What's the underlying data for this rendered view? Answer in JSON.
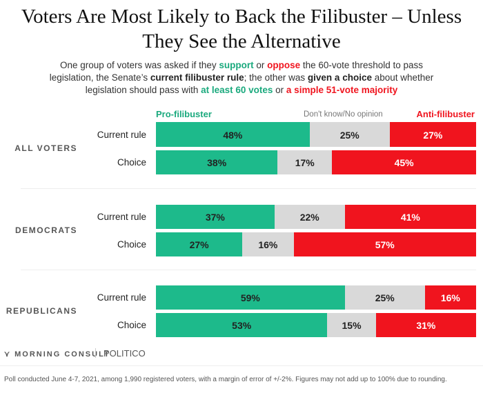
{
  "chart_data": {
    "type": "bar",
    "orientation": "horizontal-stacked",
    "title": "Voters Are Most Likely to Back the Filibuster – Unless They See the Alternative",
    "subtitle_parts": [
      {
        "t": "One group of voters was asked if they ",
        "c": ""
      },
      {
        "t": "support",
        "c": "g"
      },
      {
        "t": " or ",
        "c": ""
      },
      {
        "t": "oppose",
        "c": "r"
      },
      {
        "t": " the 60-vote threshold to pass legislation, the Senate’s ",
        "c": ""
      },
      {
        "t": "current filibuster rule",
        "c": "k"
      },
      {
        "t": "; the other was ",
        "c": ""
      },
      {
        "t": "given a choice",
        "c": "k"
      },
      {
        "t": " about whether legislation should pass with ",
        "c": ""
      },
      {
        "t": "at least 60 votes",
        "c": "g"
      },
      {
        "t": " or ",
        "c": ""
      },
      {
        "t": "a simple 51-vote majority",
        "c": "r"
      }
    ],
    "legend": [
      "Pro-filibuster",
      "Don't know/No opinion",
      "Anti-filibuster"
    ],
    "colors": {
      "pro": "#1dba8b",
      "dk": "#d9d9d9",
      "anti": "#f0141e"
    },
    "groups": [
      {
        "name": "ALL VOTERS",
        "rows": [
          {
            "label": "Current rule",
            "values": [
              48,
              25,
              27
            ]
          },
          {
            "label": "Choice",
            "values": [
              38,
              17,
              45
            ]
          }
        ]
      },
      {
        "name": "DEMOCRATS",
        "rows": [
          {
            "label": "Current rule",
            "values": [
              37,
              22,
              41
            ]
          },
          {
            "label": "Choice",
            "values": [
              27,
              16,
              57
            ]
          }
        ]
      },
      {
        "name": "REPUBLICANS",
        "rows": [
          {
            "label": "Current rule",
            "values": [
              59,
              25,
              16
            ]
          },
          {
            "label": "Choice",
            "values": [
              53,
              15,
              31
            ]
          }
        ]
      }
    ],
    "unit": "%"
  },
  "footer": {
    "brand": "MORNING CONSULT",
    "partner": "POLITICO",
    "note": "Poll conducted June 4-7, 2021, among 1,990 registered voters, with a margin of error of +/-2%. Figures may not add up to 100% due to rounding."
  }
}
